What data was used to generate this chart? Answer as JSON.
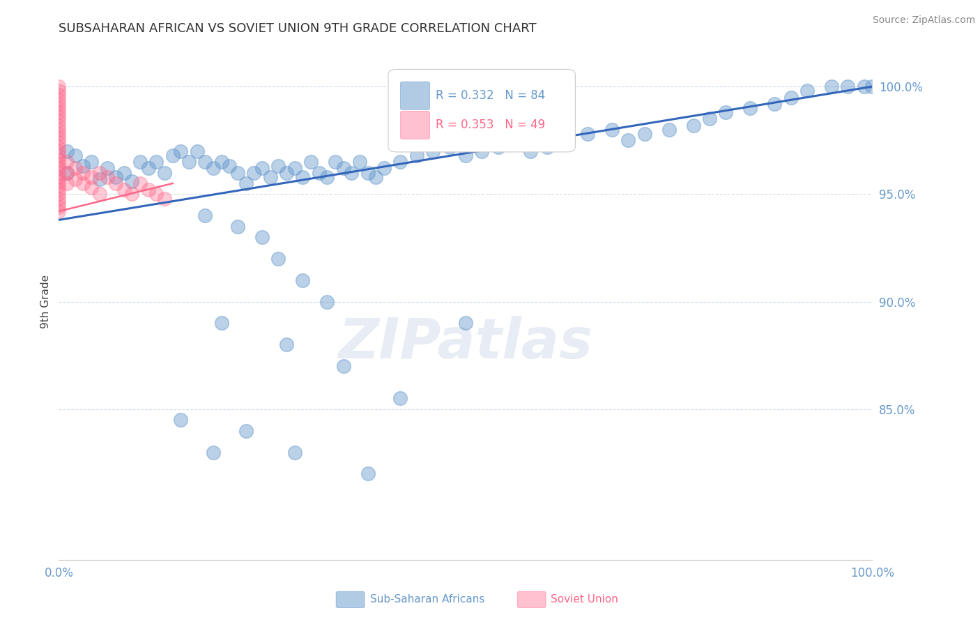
{
  "title": "SUBSAHARAN AFRICAN VS SOVIET UNION 9TH GRADE CORRELATION CHART",
  "source": "Source: ZipAtlas.com",
  "ylabel": "9th Grade",
  "xlim": [
    0.0,
    1.0
  ],
  "ylim": [
    0.78,
    1.02
  ],
  "blue_color": "#6699CC",
  "pink_color": "#FF6688",
  "blue_label": "Sub-Saharan Africans",
  "pink_label": "Soviet Union",
  "blue_R": 0.332,
  "blue_N": 84,
  "pink_R": 0.353,
  "pink_N": 49,
  "watermark": "ZIPatlas",
  "watermark_color": "#AABBDD",
  "blue_scatter_x": [
    0.01,
    0.01,
    0.02,
    0.03,
    0.04,
    0.05,
    0.06,
    0.07,
    0.08,
    0.09,
    0.1,
    0.11,
    0.12,
    0.13,
    0.14,
    0.15,
    0.16,
    0.17,
    0.18,
    0.19,
    0.2,
    0.21,
    0.22,
    0.23,
    0.24,
    0.25,
    0.26,
    0.27,
    0.28,
    0.29,
    0.3,
    0.31,
    0.32,
    0.33,
    0.34,
    0.35,
    0.36,
    0.37,
    0.38,
    0.39,
    0.4,
    0.42,
    0.44,
    0.46,
    0.48,
    0.5,
    0.52,
    0.54,
    0.56,
    0.58,
    0.6,
    0.62,
    0.65,
    0.68,
    0.7,
    0.72,
    0.75,
    0.78,
    0.8,
    0.82,
    0.85,
    0.88,
    0.9,
    0.92,
    0.95,
    0.97,
    0.99,
    1.0,
    0.18,
    0.22,
    0.25,
    0.27,
    0.3,
    0.33,
    0.2,
    0.28,
    0.35,
    0.42,
    0.23,
    0.19,
    0.38,
    0.5,
    0.15,
    0.29
  ],
  "blue_scatter_y": [
    0.97,
    0.96,
    0.968,
    0.963,
    0.965,
    0.957,
    0.962,
    0.958,
    0.96,
    0.956,
    0.965,
    0.962,
    0.965,
    0.96,
    0.968,
    0.97,
    0.965,
    0.97,
    0.965,
    0.962,
    0.965,
    0.963,
    0.96,
    0.955,
    0.96,
    0.962,
    0.958,
    0.963,
    0.96,
    0.962,
    0.958,
    0.965,
    0.96,
    0.958,
    0.965,
    0.962,
    0.96,
    0.965,
    0.96,
    0.958,
    0.962,
    0.965,
    0.968,
    0.97,
    0.972,
    0.968,
    0.97,
    0.972,
    0.975,
    0.97,
    0.972,
    0.975,
    0.978,
    0.98,
    0.975,
    0.978,
    0.98,
    0.982,
    0.985,
    0.988,
    0.99,
    0.992,
    0.995,
    0.998,
    1.0,
    1.0,
    1.0,
    1.0,
    0.94,
    0.935,
    0.93,
    0.92,
    0.91,
    0.9,
    0.89,
    0.88,
    0.87,
    0.855,
    0.84,
    0.83,
    0.82,
    0.89,
    0.845,
    0.83
  ],
  "pink_scatter_x": [
    0.0,
    0.0,
    0.0,
    0.0,
    0.0,
    0.0,
    0.0,
    0.0,
    0.0,
    0.0,
    0.0,
    0.0,
    0.0,
    0.0,
    0.0,
    0.0,
    0.0,
    0.0,
    0.0,
    0.0,
    0.0,
    0.0,
    0.0,
    0.0,
    0.0,
    0.0,
    0.0,
    0.0,
    0.0,
    0.0,
    0.01,
    0.01,
    0.01,
    0.02,
    0.02,
    0.03,
    0.03,
    0.04,
    0.04,
    0.05,
    0.05,
    0.06,
    0.07,
    0.08,
    0.09,
    0.1,
    0.11,
    0.12,
    0.13
  ],
  "pink_scatter_y": [
    1.0,
    0.998,
    0.996,
    0.994,
    0.992,
    0.99,
    0.988,
    0.986,
    0.984,
    0.982,
    0.98,
    0.978,
    0.976,
    0.974,
    0.972,
    0.97,
    0.968,
    0.966,
    0.964,
    0.962,
    0.96,
    0.958,
    0.956,
    0.954,
    0.952,
    0.95,
    0.948,
    0.946,
    0.944,
    0.942,
    0.965,
    0.96,
    0.955,
    0.962,
    0.957,
    0.96,
    0.955,
    0.958,
    0.953,
    0.96,
    0.95,
    0.958,
    0.955,
    0.952,
    0.95,
    0.955,
    0.952,
    0.95,
    0.948
  ],
  "blue_line_x": [
    0.0,
    1.0
  ],
  "blue_line_y": [
    0.938,
    1.0
  ],
  "pink_line_x": [
    0.0,
    0.14
  ],
  "pink_line_y": [
    0.942,
    0.955
  ],
  "title_color": "#333333",
  "tick_color": "#6699CC",
  "grid_color": "#BBCCDD",
  "legend_blue_text_color": "#6699CC",
  "legend_pink_text_color": "#FF6688"
}
